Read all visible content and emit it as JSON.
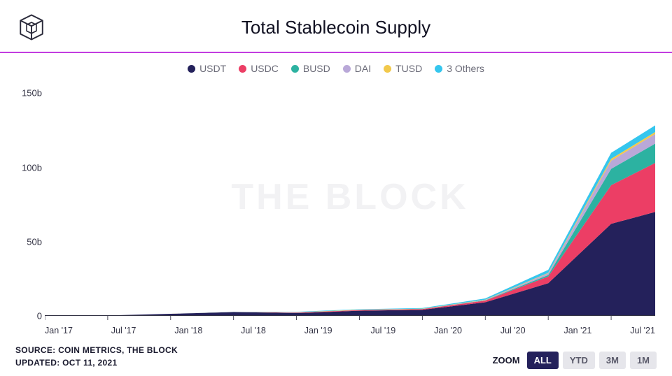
{
  "title": "Total Stablecoin Supply",
  "accent_border_color": "#c23de0",
  "title_color": "#111122",
  "watermark": {
    "text": "THE BLOCK",
    "color": "#f2f2f4",
    "fontsize": 52
  },
  "logo_stroke": "#2a2a3a",
  "legend_text_color": "#6b6b78",
  "legend": [
    {
      "label": "USDT",
      "color": "#24215b"
    },
    {
      "label": "USDC",
      "color": "#ec3e65"
    },
    {
      "label": "BUSD",
      "color": "#2cb2a1"
    },
    {
      "label": "DAI",
      "color": "#b9a8d8"
    },
    {
      "label": "TUSD",
      "color": "#f2c94c"
    },
    {
      "label": "3 Others",
      "color": "#35c6ee"
    }
  ],
  "chart": {
    "type": "stacked-area",
    "background_color": "#ffffff",
    "axis_color": "#333344",
    "ylim": [
      0,
      160
    ],
    "ylabel_suffix": "b",
    "yticks": [
      0,
      50,
      100,
      150
    ],
    "xlabels": [
      "Jan '17",
      "Jul '17",
      "Jan '18",
      "Jul '18",
      "Jan '19",
      "Jul '19",
      "Jan '20",
      "Jul '20",
      "Jan '21",
      "Jul '21"
    ],
    "x_points": [
      0,
      1,
      2,
      3,
      4,
      5,
      6,
      7,
      8,
      9,
      9.7
    ],
    "series": [
      {
        "name": "USDT",
        "color": "#24215b",
        "values": [
          0.01,
          0.3,
          1.4,
          2.6,
          1.9,
          3.5,
          4.1,
          9.2,
          22,
          62,
          70
        ]
      },
      {
        "name": "USDC",
        "color": "#ec3e65",
        "values": [
          0,
          0,
          0,
          0,
          0.3,
          0.4,
          0.5,
          1.1,
          4.5,
          26,
          33
        ]
      },
      {
        "name": "BUSD",
        "color": "#2cb2a1",
        "values": [
          0,
          0,
          0,
          0,
          0,
          0,
          0.02,
          0.2,
          1,
          11,
          13
        ]
      },
      {
        "name": "DAI",
        "color": "#b9a8d8",
        "values": [
          0,
          0,
          0,
          0.05,
          0.07,
          0.09,
          0.1,
          0.2,
          1.2,
          5.5,
          6.5
        ]
      },
      {
        "name": "TUSD",
        "color": "#f2c94c",
        "values": [
          0,
          0,
          0,
          0.08,
          0.2,
          0.2,
          0.15,
          0.25,
          0.3,
          1.3,
          1.3
        ]
      },
      {
        "name": "3 Others",
        "color": "#35c6ee",
        "values": [
          0,
          0,
          0,
          0.05,
          0.3,
          0.3,
          0.4,
          0.8,
          2,
          4,
          4.5
        ]
      }
    ]
  },
  "footer": {
    "source_line": "SOURCE: COIN METRICS, THE BLOCK",
    "updated_line": "UPDATED: OCT 11, 2021",
    "zoom_label": "ZOOM",
    "zoom_options": [
      "ALL",
      "YTD",
      "3M",
      "1M"
    ],
    "zoom_active": "ALL",
    "btn_active_bg": "#24215b",
    "btn_active_fg": "#ffffff",
    "btn_inactive_bg": "#e6e6eb",
    "btn_inactive_fg": "#5a5a6a"
  }
}
